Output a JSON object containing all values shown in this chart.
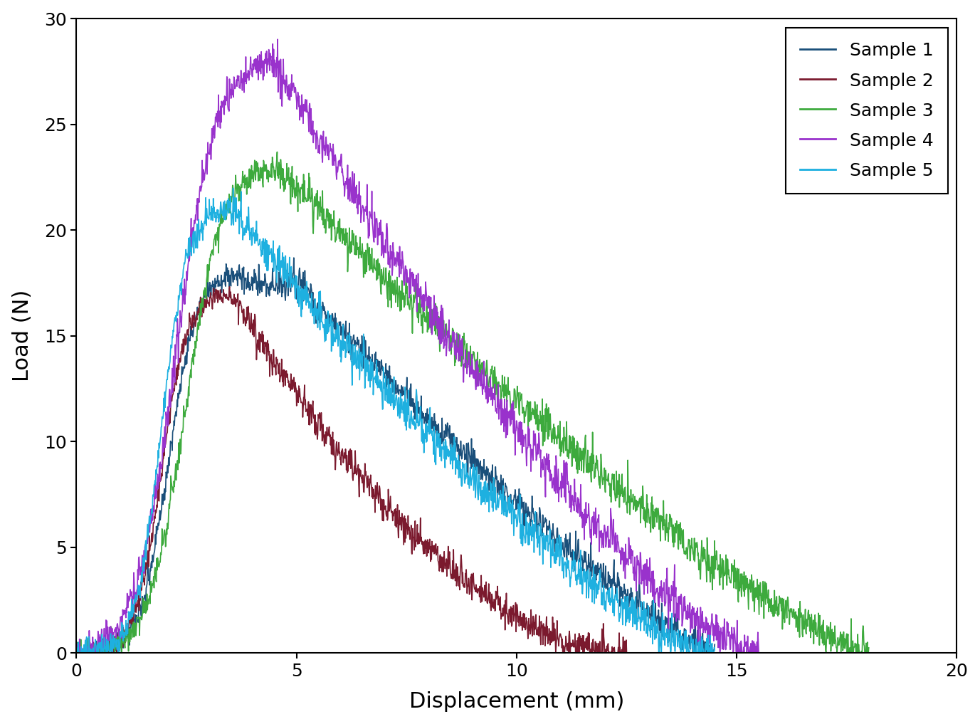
{
  "title": "",
  "xlabel": "Displacement (mm)",
  "ylabel": "Load (N)",
  "xlim": [
    0,
    20
  ],
  "ylim": [
    0,
    30
  ],
  "xticks": [
    0,
    5,
    10,
    15,
    20
  ],
  "yticks": [
    0,
    5,
    10,
    15,
    20,
    25,
    30
  ],
  "legend_labels": [
    "Sample 1",
    "Sample 2",
    "Sample 3",
    "Sample 4",
    "Sample 5"
  ],
  "colors": [
    "#1a4f7a",
    "#7b1a2e",
    "#3daa3d",
    "#9932cc",
    "#1eb0e0"
  ],
  "background_color": "#ffffff",
  "line_width": 1.2,
  "figsize": [
    13.77,
    10.17
  ],
  "dpi": 100
}
